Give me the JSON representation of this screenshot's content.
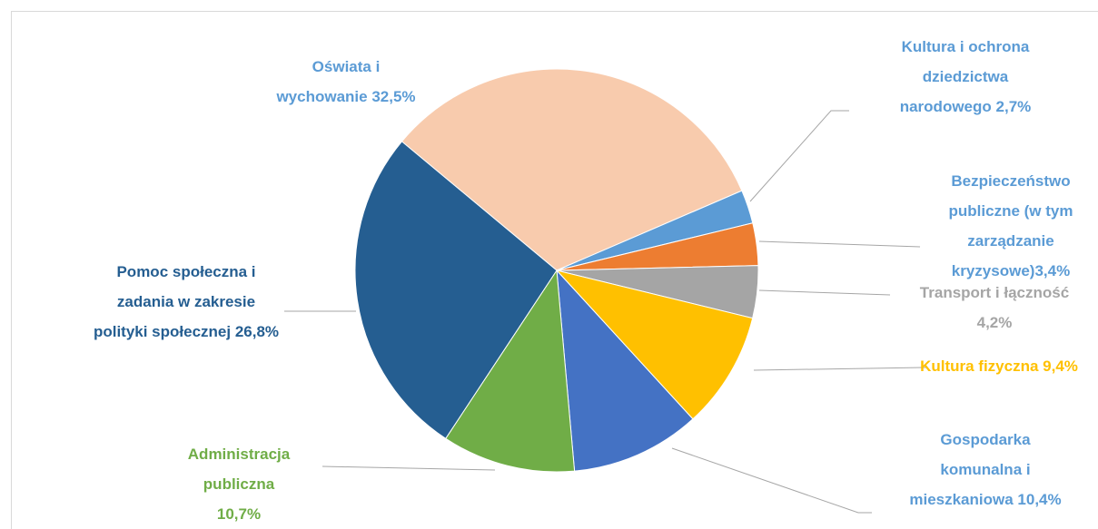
{
  "chart_data": {
    "type": "pie",
    "categories": [
      "Oświata i wychowanie",
      "Kultura i ochrona dziedzictwa narodowego",
      "Bezpieczeństwo publiczne (w tym zarządzanie kryzysowe)",
      "Transport i łączność",
      "Kultura fizyczna",
      "Gospodarka komunalna i mieszkaniowa",
      "Administracja publiczna",
      "Pomoc społeczna i zadania w zakresie polityki społecznej"
    ],
    "values": [
      32.5,
      2.7,
      3.4,
      4.2,
      9.4,
      10.4,
      10.7,
      26.8
    ],
    "value_labels": [
      "32,5%",
      "2,7%",
      "3,4%",
      "4,2%",
      "9,4%",
      "10,4%",
      "10,7%",
      "26,8%"
    ],
    "colors": [
      "#f8cbad",
      "#5b9bd5",
      "#ed7d31",
      "#a5a5a5",
      "#ffc000",
      "#4472c4",
      "#70ad47",
      "#255e91"
    ],
    "label_colors": [
      "#5b9bd5",
      "#5b9bd5",
      "#5b9bd5",
      "#a5a5a5",
      "#ffc000",
      "#5b9bd5",
      "#70ad47",
      "#255e91"
    ]
  }
}
